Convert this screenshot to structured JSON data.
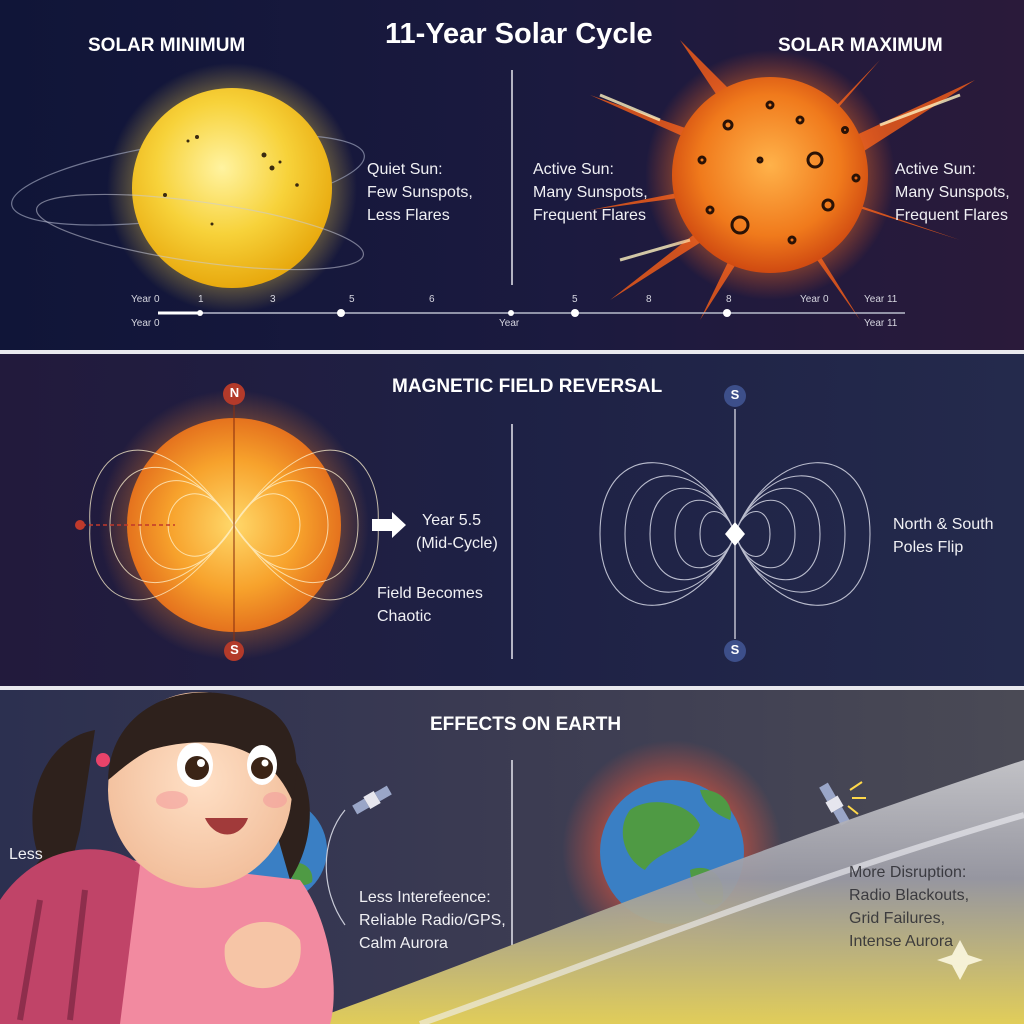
{
  "header": {
    "main_title": "11-Year Solar Cycle",
    "minimum_title": "SOLAR MINIMUM",
    "maximum_title": "SOLAR MAXIMUM"
  },
  "cycle": {
    "quiet_lines": [
      "Quiet Sun:",
      "Few Sunspots,",
      "Less Flares"
    ],
    "active_lines_center": [
      "Active Sun:",
      "Many Sunspots,",
      "Frequent Flares"
    ],
    "active_lines_right": [
      "Active Sun:",
      "Many Sunspots,",
      "Frequent Flares"
    ]
  },
  "timeline": {
    "top_ticks": [
      "Year 0",
      "1",
      "3",
      "5",
      "6",
      "5",
      "8",
      "8",
      "Year 0",
      "Year 11"
    ],
    "bottom_left": "Year 0",
    "bottom_center": "Year",
    "bottom_right": "Year 11"
  },
  "magnetic": {
    "title": "MAGNETIC FIELD REVERSAL",
    "pole_n": "N",
    "pole_s_left": "S",
    "pole_s_top": "S",
    "pole_s_bottom": "S",
    "midcycle_lines": [
      "Year 5.5",
      "(Mid-Cycle)"
    ],
    "chaotic_lines": [
      "Field Becomes",
      "Chaotic"
    ],
    "flip_lines": [
      "North & South",
      "Poles Flip"
    ]
  },
  "effects": {
    "title": "EFFECTS ON EARTH",
    "cut_label": "Less",
    "less_lines": [
      "Less Interefeence:",
      "Reliable Radio/GPS,",
      "Calm Aurora"
    ],
    "more_lines": [
      "More Disruption:",
      "Radio Blackouts,",
      "Grid Failures,",
      "Intense Aurora"
    ]
  },
  "colors": {
    "quiet_sun": "#f7d23a",
    "active_sun": "#f06a18",
    "north_pole": "#c0392b",
    "south_pole": "#3d4f8a",
    "earth_ocean": "#3a7fc4",
    "earth_land": "#4f9a44"
  }
}
